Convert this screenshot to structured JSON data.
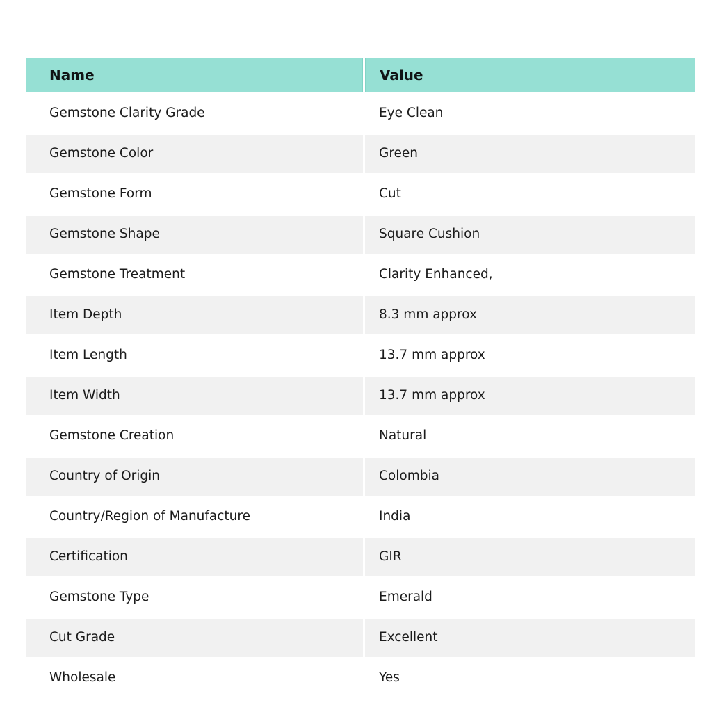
{
  "table": {
    "columns": [
      {
        "label": "Name"
      },
      {
        "label": "Value"
      }
    ],
    "rows": [
      {
        "name": "Gemstone Clarity Grade",
        "value": "Eye Clean"
      },
      {
        "name": "Gemstone Color",
        "value": "Green"
      },
      {
        "name": "Gemstone Form",
        "value": "Cut"
      },
      {
        "name": "Gemstone Shape",
        "value": "Square Cushion"
      },
      {
        "name": "Gemstone Treatment",
        "value": "Clarity Enhanced,"
      },
      {
        "name": "Item Depth",
        "value": "8.3 mm approx"
      },
      {
        "name": "Item Length",
        "value": "13.7 mm approx"
      },
      {
        "name": "Item Width",
        "value": "13.7 mm approx"
      },
      {
        "name": "Gemstone Creation",
        "value": "Natural"
      },
      {
        "name": "Country of Origin",
        "value": "Colombia"
      },
      {
        "name": "Country/Region of Manufacture",
        "value": "India"
      },
      {
        "name": "Certification",
        "value": "GIR"
      },
      {
        "name": "Gemstone Type",
        "value": "Emerald"
      },
      {
        "name": "Cut Grade",
        "value": "Excellent"
      },
      {
        "name": "Wholesale",
        "value": "Yes"
      }
    ]
  },
  "colors": {
    "header_bg": "#96E0D4",
    "header_border": "#82D4C6",
    "stripe_bg": "#F1F1F1",
    "text": "#1B1B1B"
  }
}
